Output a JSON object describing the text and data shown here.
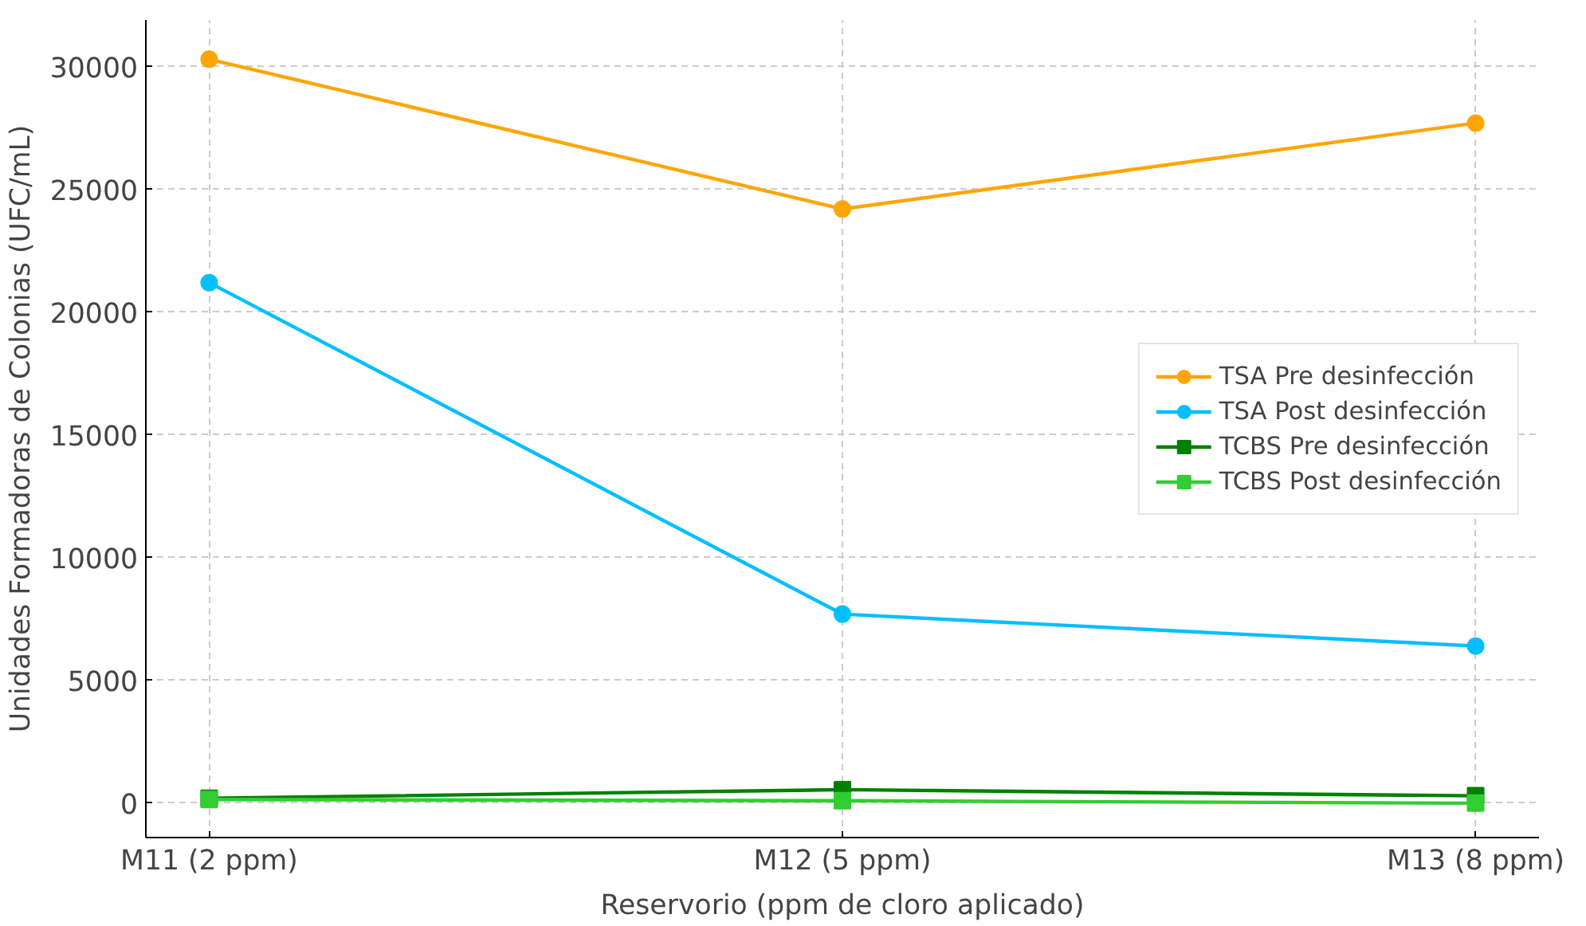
{
  "chart_data": {
    "type": "line",
    "xlabel": "Reservorio (ppm de cloro aplicado)",
    "ylabel": "Unidades Formadoras de Colonias (UFC/mL)",
    "categories": [
      "M11 (2 ppm)",
      "M12 (5 ppm)",
      "M13 (8 ppm)"
    ],
    "series": [
      {
        "name": "TSA Pre desinfección",
        "color": "#ffa500",
        "marker": "circle",
        "values": [
          30300,
          24200,
          27700
        ]
      },
      {
        "name": "TSA Post desinfección",
        "color": "#00bfff",
        "marker": "circle",
        "values": [
          21200,
          7700,
          6400
        ]
      },
      {
        "name": "TCBS Pre desinfección",
        "color": "#008000",
        "marker": "square",
        "values": [
          200,
          550,
          300
        ]
      },
      {
        "name": "TCBS Post desinfección",
        "color": "#32cd32",
        "marker": "square",
        "values": [
          150,
          100,
          0
        ]
      }
    ],
    "ylim": [
      -1400,
      31900
    ],
    "yticks": [
      0,
      5000,
      10000,
      15000,
      20000,
      25000,
      30000
    ],
    "grid": true,
    "legend": "right",
    "line_style": "solid"
  }
}
